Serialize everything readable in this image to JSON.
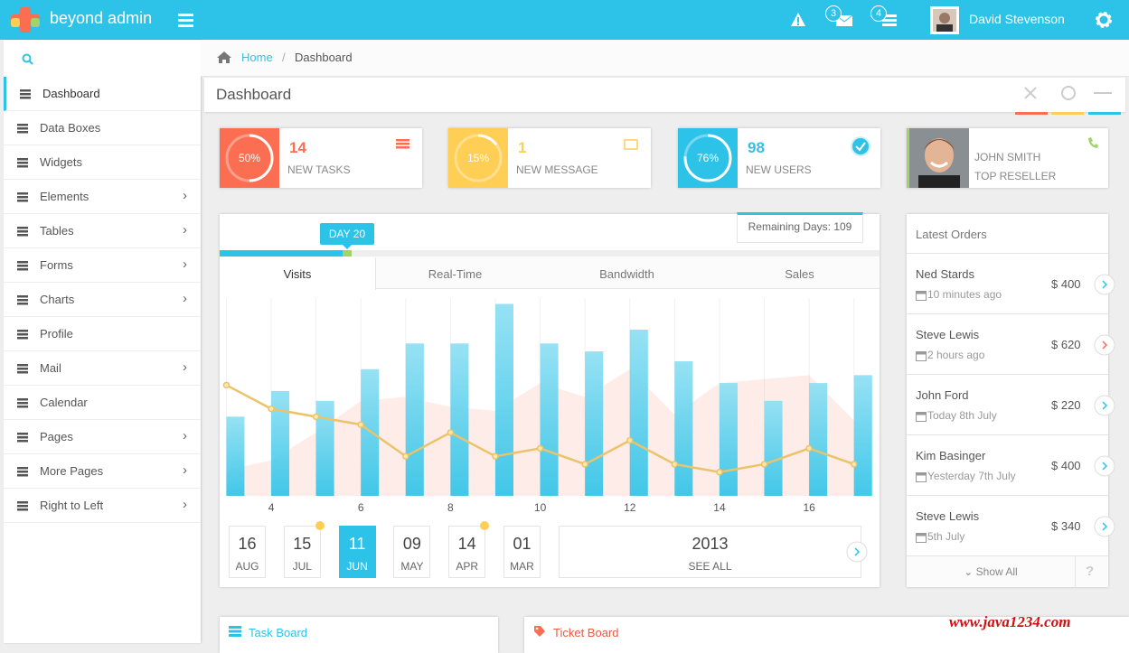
{
  "topbar": {
    "brand": "beyond admin",
    "badges": [
      "3",
      "4"
    ],
    "user": "David Stevenson"
  },
  "sidebar": {
    "items": [
      {
        "label": "Dashboard"
      },
      {
        "label": "Data Boxes"
      },
      {
        "label": "Widgets"
      },
      {
        "label": "Elements",
        "submenu": true
      },
      {
        "label": "Tables",
        "submenu": true
      },
      {
        "label": "Forms",
        "submenu": true
      },
      {
        "label": "Charts",
        "submenu": true
      },
      {
        "label": "Profile"
      },
      {
        "label": "Mail",
        "submenu": true
      },
      {
        "label": "Calendar"
      },
      {
        "label": "Pages",
        "submenu": true
      },
      {
        "label": "More Pages",
        "submenu": true
      },
      {
        "label": "Right to Left",
        "submenu": true
      }
    ]
  },
  "breadcrumb": {
    "home": "Home",
    "current": "Dashboard"
  },
  "page_header": {
    "title": "Dashboard"
  },
  "stats": [
    {
      "percent": "50%",
      "value": "14",
      "label": "NEW TASKS",
      "color": "#fb6e52"
    },
    {
      "percent": "15%",
      "value": "1",
      "label": "NEW MESSAGE",
      "color": "#ffce55"
    },
    {
      "percent": "76%",
      "value": "98",
      "label": "NEW USERS",
      "color": "#2dc3e8"
    }
  ],
  "profile_box": {
    "name": "JOHN SMITH",
    "role": "TOP RESELLER"
  },
  "chart_panel": {
    "day_badge": "DAY 20",
    "remaining": "Remaining Days: 109",
    "tabs": [
      "Visits",
      "Real-Time",
      "Bandwidth",
      "Sales"
    ],
    "dates": [
      {
        "day": "16",
        "month": "AUG"
      },
      {
        "day": "15",
        "month": "JUL"
      },
      {
        "day": "11",
        "month": "JUN"
      },
      {
        "day": "09",
        "month": "MAY"
      },
      {
        "day": "14",
        "month": "APR"
      },
      {
        "day": "01",
        "month": "MAR"
      }
    ],
    "year": "2013",
    "see_all": "SEE ALL"
  },
  "chart_data": {
    "type": "bar",
    "x": [
      3,
      4,
      5,
      6,
      7,
      8,
      9,
      10,
      11,
      12,
      13,
      14,
      15,
      16,
      17
    ],
    "xlim": [
      2.85,
      17.57
    ],
    "xticks": [
      4,
      6,
      8,
      10,
      12,
      14,
      16
    ],
    "ylim": [
      0,
      100
    ],
    "grid": true,
    "series": [
      {
        "type": "area",
        "color": "#fb6e52",
        "values": [
          13,
          18,
          32,
          48,
          50,
          45,
          43,
          57,
          50,
          64,
          41,
          57,
          59,
          61,
          38
        ]
      },
      {
        "type": "bar",
        "color": "#2dc3e8",
        "values": [
          40,
          53,
          48,
          64,
          77,
          77,
          97,
          77,
          73,
          84,
          68,
          57,
          48,
          57,
          61
        ]
      },
      {
        "type": "line",
        "color": "#eac36a",
        "values": [
          56,
          44,
          40,
          36,
          20,
          32,
          20,
          24,
          16,
          28,
          16,
          12,
          16,
          24,
          16
        ]
      }
    ]
  },
  "orders": {
    "title": "Latest Orders",
    "items": [
      {
        "name": "Ned Stards",
        "time": "10 minutes ago",
        "amount": "$ 400"
      },
      {
        "name": "Steve Lewis",
        "time": "2 hours ago",
        "amount": "$ 620"
      },
      {
        "name": "John Ford",
        "time": "Today 8th July",
        "amount": "$ 220"
      },
      {
        "name": "Kim Basinger",
        "time": "Yesterday 7th July",
        "amount": "$ 400"
      },
      {
        "name": "Steve Lewis",
        "time": "5th July",
        "amount": "$ 340"
      }
    ],
    "show_all": "Show All"
  },
  "bottom": {
    "task_board": "Task Board",
    "ticket_board": "Ticket Board"
  },
  "watermark": "www.java1234.com"
}
